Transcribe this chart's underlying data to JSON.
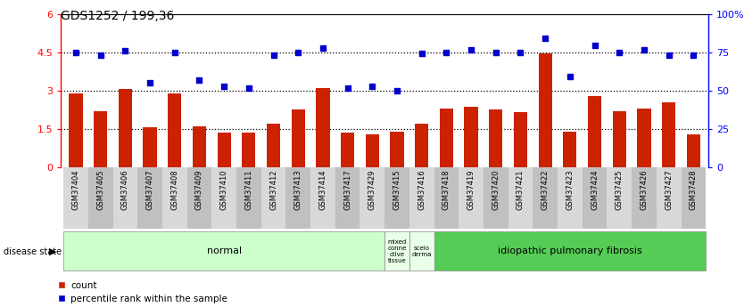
{
  "title": "GDS1252 / 199,36",
  "samples": [
    "GSM37404",
    "GSM37405",
    "GSM37406",
    "GSM37407",
    "GSM37408",
    "GSM37409",
    "GSM37410",
    "GSM37411",
    "GSM37412",
    "GSM37413",
    "GSM37414",
    "GSM37417",
    "GSM37429",
    "GSM37415",
    "GSM37416",
    "GSM37418",
    "GSM37419",
    "GSM37420",
    "GSM37421",
    "GSM37422",
    "GSM37423",
    "GSM37424",
    "GSM37425",
    "GSM37426",
    "GSM37427",
    "GSM37428"
  ],
  "count": [
    2.9,
    2.2,
    3.05,
    1.55,
    2.9,
    1.6,
    1.35,
    1.35,
    1.7,
    2.25,
    3.1,
    1.35,
    1.3,
    1.4,
    1.7,
    2.3,
    2.35,
    2.25,
    2.15,
    4.45,
    1.4,
    2.8,
    2.2,
    2.3,
    2.55,
    1.3
  ],
  "percentile": [
    4.5,
    4.4,
    4.55,
    3.3,
    4.5,
    3.4,
    3.15,
    3.1,
    4.4,
    4.5,
    4.65,
    3.1,
    3.15,
    3.0,
    4.45,
    4.5,
    4.6,
    4.5,
    4.5,
    5.05,
    3.55,
    4.75,
    4.5,
    4.6,
    4.4,
    4.4
  ],
  "bar_color": "#cc2200",
  "scatter_color": "#0000cc",
  "left_yticks": [
    0,
    1.5,
    3.0,
    4.5,
    6
  ],
  "right_ytick_labels": [
    "0",
    "25",
    "50",
    "75",
    "100%"
  ],
  "hlines": [
    1.5,
    3.0,
    4.5
  ],
  "zone_normal_label": "normal",
  "zone_normal_color": "#ccffcc",
  "zone_mixed_label": "mixed\nconne\nctive\ntissue",
  "zone_mixed_color": "#e8ffe8",
  "zone_sclero_label": "scelo\nderma",
  "zone_sclero_color": "#e8ffe8",
  "zone_ipf_label": "idiopathic pulmonary fibrosis",
  "zone_ipf_color": "#55cc55",
  "legend_count_label": "count",
  "legend_pct_label": "percentile rank within the sample"
}
